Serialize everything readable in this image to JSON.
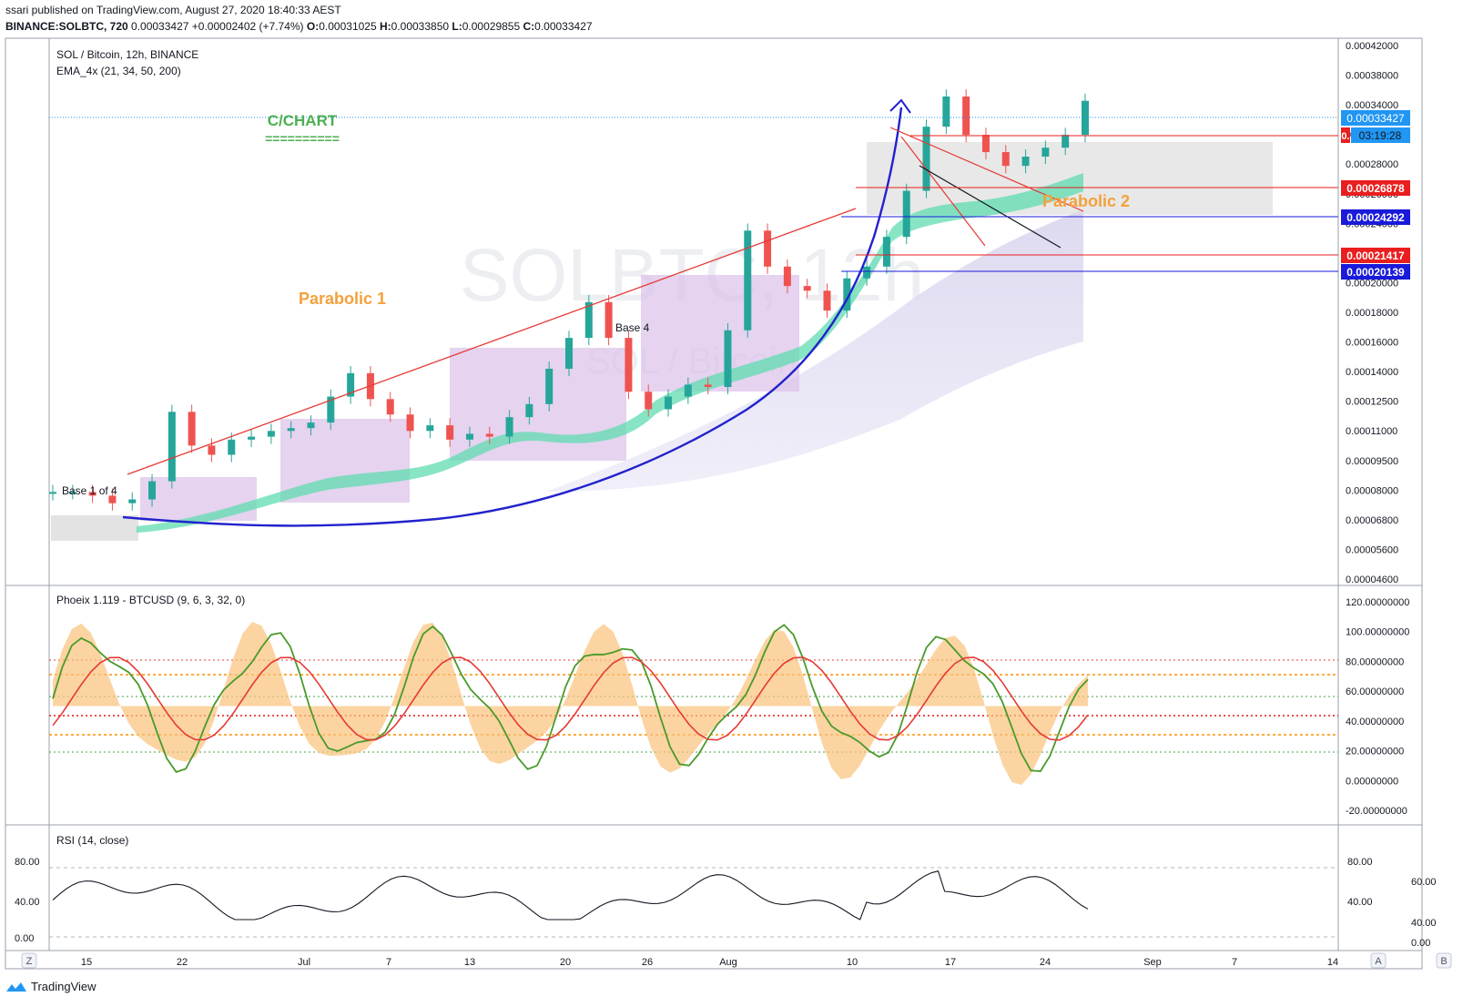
{
  "header": {
    "published": "ssari published on TradingView.com, August 27, 2020 18:40:33 AEST",
    "symbol": "BINANCE:SOLBTC, 720",
    "last": "0.00033427",
    "change": "+0.00002402 (+7.74%)",
    "o_label": "O:",
    "o": "0.00031025",
    "h_label": "H:",
    "h": "0.00033850",
    "l_label": "L:",
    "l": "0.00029855",
    "c_label": "C:",
    "c": "0.00033427"
  },
  "pane1": {
    "legend_title": "SOL / Bitcoin, 12h, BINANCE",
    "legend_ema": "EMA_4x (21, 34, 50, 200)",
    "watermark": "SOLBTC, 12h",
    "watermark_sub": "SOL / Bitcoin",
    "annotations": {
      "cchart": "C/CHART",
      "cchart_underline": "==========",
      "parabolic1": "Parabolic 1",
      "parabolic2": "Parabolic 2",
      "base1": "Base 1 of 4",
      "base4": "Base  4"
    },
    "price_axis": [
      "0.00042000",
      "0.00038000",
      "0.00034000",
      "0.00030000",
      "0.00028000",
      "0.00026000",
      "0.00024000",
      "0.00022000",
      "0.00020000",
      "0.00018000",
      "0.00016000",
      "0.00014000",
      "0.00012500",
      "0.00011000",
      "0.00009500",
      "0.00008000",
      "0.00006800",
      "0.00005600",
      "0.00004600"
    ],
    "price_tags": {
      "last": "0.00033427",
      "countdown": "03:19:28",
      "hline1_prefix": "0.",
      "level1": "0.00026878",
      "level2": "0.00024292",
      "level3": "0.00021417",
      "level4": "0.00020139"
    },
    "colors": {
      "up": "#26a69a",
      "down": "#ef5350",
      "tag_blue": "#2196f3",
      "tag_red": "#e91e1e",
      "tag_navy": "#1a1adb",
      "curve": "#2222cc",
      "trend": "#e53935"
    }
  },
  "pane2": {
    "legend": "Phoeix 1.119 - BTCUSD (9, 6, 3, 32, 0)",
    "axis": [
      "120.00000000",
      "100.00000000",
      "80.00000000",
      "60.00000000",
      "40.00000000",
      "20.00000000",
      "0.00000000",
      "-20.00000000"
    ]
  },
  "pane3": {
    "legend": "RSI (14, close)",
    "axis_left": [
      "80.00",
      "40.00",
      "0.00"
    ],
    "axis_right": [
      "80.00",
      "60.00",
      "40.00",
      "40.00",
      "0.00"
    ]
  },
  "time_axis": [
    "15",
    "22",
    "Jul",
    "7",
    "13",
    "20",
    "26",
    "Aug",
    "10",
    "17",
    "24",
    "Sep",
    "7",
    "14"
  ],
  "corner_buttons": {
    "z": "Z",
    "a": "A",
    "b": "B"
  },
  "footer": {
    "brand": "TradingView"
  },
  "chart_data": {
    "type": "candlestick",
    "symbol": "BINANCE:SOLBTC",
    "interval": "12h",
    "close": [
      6.6e-05,
      6.6e-05,
      6.5e-05,
      6.3e-05,
      6.4e-05,
      6.9e-05,
      9.2e-05,
      8e-05,
      7.7e-05,
      8.2e-05,
      8.3e-05,
      8.5e-05,
      8.6e-05,
      8.8e-05,
      9.8e-05,
      0.000108,
      9.7e-05,
      9.1e-05,
      8.5e-05,
      8.7e-05,
      8.2e-05,
      8.4e-05,
      8.3e-05,
      9e-05,
      9.5e-05,
      0.00011,
      0.000125,
      0.000145,
      0.000125,
      0.0001,
      9.3e-05,
      9.8e-05,
      0.000103,
      0.000102,
      0.000129,
      0.000195,
      0.000168,
      0.000155,
      0.000152,
      0.00014,
      0.00016,
      0.000168,
      0.00019,
      0.00023,
      0.0003,
      0.00034,
      0.00029,
      0.00027,
      0.000255,
      0.000265,
      0.000275,
      0.00029,
      0.000334
    ],
    "levels": [
      0.00026878,
      0.00024292,
      0.00021417,
      0.00020139
    ],
    "last": 0.00033427
  }
}
